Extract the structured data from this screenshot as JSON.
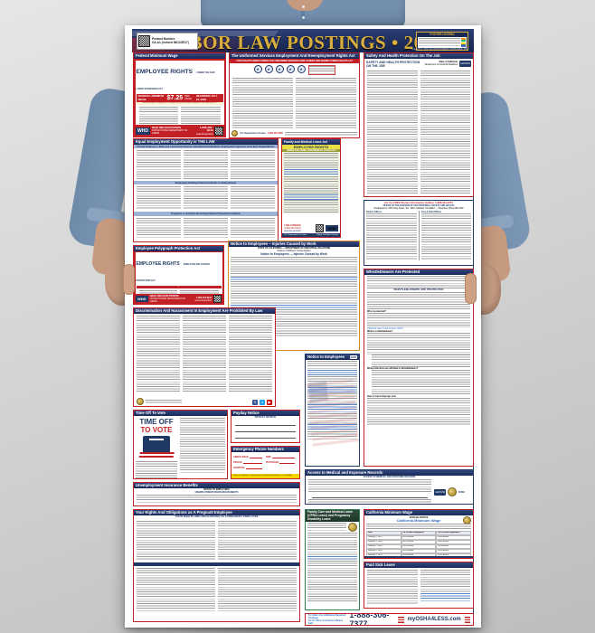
{
  "header": {
    "product_label": "Product Number:",
    "product_number": "CA-A1 (revised 06/12/2017)",
    "title": "LABOR LAW POSTINGS • 2018",
    "legend_title": "POSTER LEGEND",
    "copyright": "Copyright © 2017 ELITE BUSINESS VENTURES, INC.",
    "legend_chips": [
      "#f7941d",
      "#2bb673",
      "#f5d400",
      "#3a66b0"
    ],
    "colors": {
      "navy": "#1c2c5b",
      "gold": "#d9ae3c",
      "red": "#c32026"
    }
  },
  "sections": {
    "flsa": {
      "bar": "Federal Minimum Wage",
      "title": "EMPLOYEE RIGHTS",
      "subtitle": "UNDER THE FAIR LABOR STANDARDS ACT",
      "wage_label": "FEDERAL MINIMUM WAGE",
      "wage": "$7.25",
      "per": "PER HOUR",
      "beginning": "BEGINNING JULY 24, 2009",
      "notice": "The law requires employers to display this poster where employees can readily see it.",
      "agency": "WHD",
      "agency_line1": "WAGE AND HOUR DIVISION",
      "agency_line2": "UNITED STATES DEPARTMENT OF LABOR",
      "phone": "1-866-487-9243",
      "web": "www.dol.gov/whd"
    },
    "userra": {
      "bar": "The Uniformed Services Employment And Reemployment Rights Act",
      "banner": "YOUR RIGHTS UNDER USERRA THE UNIFORMED SERVICES EMPLOYMENT AND REEMPLOYMENT RIGHTS ACT",
      "footer_agency": "U.S. Department of Labor",
      "footer_phone": "1-866-487-2365"
    },
    "safety": {
      "bar": "Safety And Health Protection On The Job",
      "title": "SAFETY AND HEALTH PROTECTION ON THE JOB",
      "state": "State of California",
      "dept": "Department of Industrial Relations",
      "logo": "Cal/OSHA"
    },
    "offices": {
      "hotline": "For the FREE Worker Information Hotline: 1-866-924-9757",
      "office": "OFFICE OF THE DIVISION OF OCCUPATIONAL SAFETY AND HEALTH",
      "hq": "Headquarters: 1515 Clay Street, Ste. 1901, Oakland, CA 94612 — Telephone (510) 286-7000",
      "col1": "District Offices",
      "col2": "Area & Field Offices"
    },
    "eeo": {
      "bar": "Equal Employment Opportunity is THE LAW",
      "sub1": "Private Employers, State and Local Governments, Educational Institutions, Employment Agencies and Labor Organizations",
      "sub2": "Employees Holding Federal Contracts or Subcontracts",
      "sub3": "Programs or Activities Receiving Federal Financial Assistance"
    },
    "fmla": {
      "bar": "Family and Medical Leave Act",
      "title": "EMPLOYEE RIGHTS",
      "subtitle": "UNDER THE FAMILY AND MEDICAL LEAVE ACT",
      "phone": "1-866-4USWAGE",
      "phone2": "(1-866-487-9243)",
      "web": "www.dol.gov/whd",
      "footer1": "U.S. Department of Labor",
      "footer2": "Wage and Hour Division",
      "agency": "WHD"
    },
    "polygraph": {
      "bar": "Employee Polygraph Protection Act",
      "title": "EMPLOYEE RIGHTS",
      "subtitle": "EMPLOYEE POLYGRAPH PROTECTION ACT",
      "agency": "WHD",
      "agency_line1": "WAGE AND HOUR DIVISION",
      "agency_line2": "UNITED STATES DEPARTMENT OF LABOR",
      "phone": "1-866-487-9243",
      "web": "www.dol.gov/whd"
    },
    "injuries": {
      "bar": "Notice to Employees – Injuries Caused by Work",
      "state": "STATE OF CALIFORNIA — DEPARTMENT OF INDUSTRIAL RELATIONS",
      "division": "Division of Workers' Compensation",
      "title": "Notice to Employees — Injuries Caused by Work"
    },
    "whistle": {
      "bar": "Whistleblowers Are Protected",
      "title": "WHISTLEBLOWERS ARE PROTECTED",
      "q1": "Who is protected?",
      "q2": "What is a whistleblower?",
      "q3": "What protections are afforded to whistleblowers?",
      "q4": "How to report improper acts",
      "link": "California Labor Code Section 1102.5"
    },
    "discrim": {
      "bar": "Discrimination And Harassment In Employment Are Prohibited By Law"
    },
    "vote": {
      "bar": "Time Off To Vote",
      "line1": "TIME OFF",
      "line2": "TO VOTE"
    },
    "payday": {
      "bar": "Payday Notice",
      "title": "PAYDAY NOTICE"
    },
    "emergency": {
      "bar": "Emergency Phone Numbers",
      "items": [
        "AMBULANCE",
        "FIRE",
        "POLICE",
        "PHYSICIAN",
        "HOSPITAL"
      ],
      "footer_note": "State of California • Department of Industrial Relations • Cal/OSHA"
    },
    "edd": {
      "bar": "Notice to Employees",
      "logo": "EDD"
    },
    "unemployment": {
      "bar": "Unemployment Insurance Benefits",
      "title1": "NOTICE TO EMPLOYEES",
      "title2": "UNEMPLOYMENT INSURANCE BENEFITS"
    },
    "access": {
      "bar": "Access to Medical and Exposure Records",
      "title": "ACCESS TO MEDICAL AND EXPOSURE RECORDS",
      "logo1": "Cal/OSHA",
      "logo2": "DOSH"
    },
    "pregnant": {
      "bar": "Your Rights And Obligations as A Pregnant Employee",
      "title": "YOUR RIGHTS AND OBLIGATIONS AS A PREGNANT EMPLOYEE"
    },
    "cfra": {
      "bar": "Family Care and Medical Leave (CFRA Leave) and Pregnancy Disability Leave"
    },
    "minwage": {
      "bar": "California Minimum Wage",
      "official": "OFFICIAL NOTICE",
      "title": "California Minimum Wage",
      "schedule": {
        "headers": [
          "Date",
          "26 or More Employees",
          "25 or Fewer Employees"
        ],
        "rows": [
          [
            "January 1, 2017",
            "$10.50/hour",
            "$10.00/hour"
          ],
          [
            "January 1, 2018",
            "$11.00/hour",
            "$10.50/hour"
          ],
          [
            "January 1, 2019",
            "$12.00/hour",
            "$11.00/hour"
          ],
          [
            "January 1, 2020",
            "$13.00/hour",
            "$12.00/hour"
          ],
          [
            "January 1, 2021",
            "$14.00/hour",
            "$13.00/hour"
          ],
          [
            "January 1, 2022",
            "$15.00/hour",
            "$14.00/hour"
          ]
        ]
      }
    },
    "sick": {
      "bar": "Paid Sick Leave"
    },
    "footer": {
      "order_line1": "To Order any Additional Required Postings",
      "order_line2": "Or For More Assistance Please Call:",
      "phone": "1-888-306-7377",
      "brand": "myOSHA4LESS.com"
    }
  }
}
